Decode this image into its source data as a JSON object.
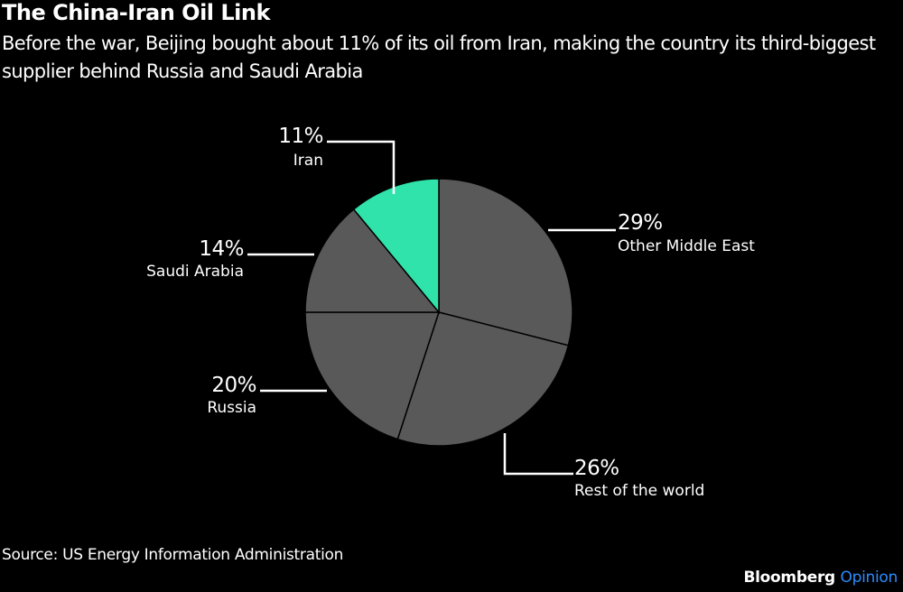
{
  "header": {
    "title": "The China-Iran Oil Link",
    "subtitle": "Before the war, Beijing bought about 11% of its oil from Iran, making the country its third-biggest supplier behind Russia and Saudi Arabia"
  },
  "footer": {
    "source": "Source: US Energy Information Administration",
    "brand": "Bloomberg",
    "brand_suffix": "Opinion"
  },
  "colors": {
    "background": "#000000",
    "highlight": "#2fe3aa",
    "slice": "#595959",
    "brand_accent": "#2b8cff"
  },
  "chart_data": {
    "type": "pie",
    "title": "The China-Iran Oil Link",
    "subtitle": "Before the war, Beijing bought about 11% of its oil from Iran, making the country its third-biggest supplier behind Russia and Saudi Arabia",
    "categories": [
      "Other Middle East",
      "Rest of the world",
      "Russia",
      "Saudi Arabia",
      "Iran"
    ],
    "values": [
      29,
      26,
      20,
      14,
      11
    ],
    "labels": [
      "29%",
      "26%",
      "20%",
      "14%",
      "11%"
    ],
    "highlight": "Iran",
    "start_angle": "12 o'clock, clockwise",
    "legend": "none (direct labels with leader lines)",
    "source": "Source: US Energy Information Administration"
  },
  "labels": {
    "ome": {
      "pct": "29%",
      "name": "Other Middle East"
    },
    "rest": {
      "pct": "26%",
      "name": "Rest of the world"
    },
    "russia": {
      "pct": "20%",
      "name": "Russia"
    },
    "saudi": {
      "pct": "14%",
      "name": "Saudi Arabia"
    },
    "iran": {
      "pct": "11%",
      "name": "Iran"
    }
  }
}
